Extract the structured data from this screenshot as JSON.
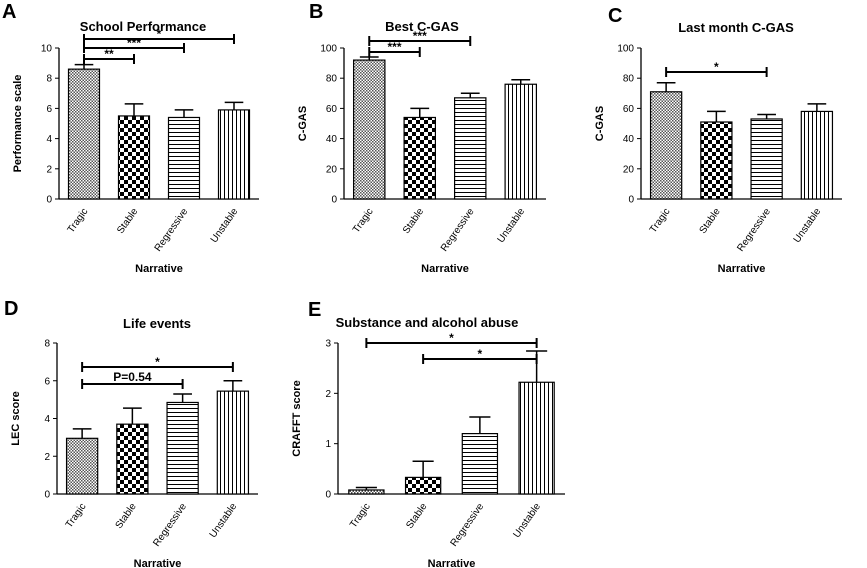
{
  "chart_data": [
    {
      "panel": "A",
      "type": "bar",
      "title": "School Performance",
      "xlabel": "Narrative",
      "ylabel": "Performance scale",
      "categories": [
        "Tragic",
        "Stable",
        "Regressive",
        "Unstable"
      ],
      "values": [
        8.6,
        5.5,
        5.4,
        5.9
      ],
      "errors": [
        0.3,
        0.8,
        0.5,
        0.5
      ],
      "ylim": [
        0,
        10
      ],
      "yticks": [
        "0",
        "2",
        "4",
        "6",
        "8",
        "10"
      ],
      "significance": [
        {
          "from": 0,
          "to": 3,
          "label": "*"
        },
        {
          "from": 0,
          "to": 2,
          "label": "***"
        },
        {
          "from": 0,
          "to": 1,
          "label": "**"
        }
      ]
    },
    {
      "panel": "B",
      "type": "bar",
      "title": "Best C-GAS",
      "xlabel": "Narrative",
      "ylabel": "C-GAS",
      "categories": [
        "Tragic",
        "Stable",
        "Regressive",
        "Unstable"
      ],
      "values": [
        92,
        54,
        67,
        76
      ],
      "errors": [
        2,
        6,
        3,
        3
      ],
      "ylim": [
        0,
        100
      ],
      "yticks": [
        "0",
        "20",
        "40",
        "60",
        "80",
        "100"
      ],
      "significance": [
        {
          "from": 0,
          "to": 2,
          "label": "***"
        },
        {
          "from": 0,
          "to": 1,
          "label": "***"
        }
      ]
    },
    {
      "panel": "C",
      "type": "bar",
      "title": "Last month C-GAS",
      "xlabel": "Narrative",
      "ylabel": "C-GAS",
      "categories": [
        "Tragic",
        "Stable",
        "Regressive",
        "Unstable"
      ],
      "values": [
        71,
        51,
        53,
        58
      ],
      "errors": [
        6,
        7,
        3,
        5
      ],
      "ylim": [
        0,
        100
      ],
      "yticks": [
        "0",
        "20",
        "40",
        "60",
        "80",
        "100"
      ],
      "significance": [
        {
          "from": 0,
          "to": 2,
          "label": "*"
        }
      ]
    },
    {
      "panel": "D",
      "type": "bar",
      "title": "Life events",
      "xlabel": "Narrative",
      "ylabel": "LEC score",
      "categories": [
        "Tragic",
        "Stable",
        "Regressive",
        "Unstable"
      ],
      "values": [
        2.95,
        3.7,
        4.85,
        5.45
      ],
      "errors": [
        0.5,
        0.85,
        0.45,
        0.55
      ],
      "ylim": [
        0,
        8
      ],
      "yticks": [
        "0",
        "2",
        "4",
        "6",
        "8"
      ],
      "significance": [
        {
          "from": 0,
          "to": 3,
          "label": "*"
        },
        {
          "from": 0,
          "to": 2,
          "label": "P=0.54"
        }
      ]
    },
    {
      "panel": "E",
      "type": "bar",
      "title": "Substance and alcohol abuse",
      "xlabel": "Narrative",
      "ylabel": "CRAFFT score",
      "categories": [
        "Tragic",
        "Stable",
        "Regressive",
        "Unstable"
      ],
      "values": [
        0.08,
        0.33,
        1.2,
        2.22
      ],
      "errors": [
        0.05,
        0.32,
        0.33,
        0.62
      ],
      "ylim": [
        0,
        3
      ],
      "yticks": [
        "0",
        "1",
        "2",
        "3"
      ],
      "significance": [
        {
          "from": 0,
          "to": 3,
          "label": "*"
        },
        {
          "from": 1,
          "to": 3,
          "label": "*"
        }
      ]
    }
  ]
}
